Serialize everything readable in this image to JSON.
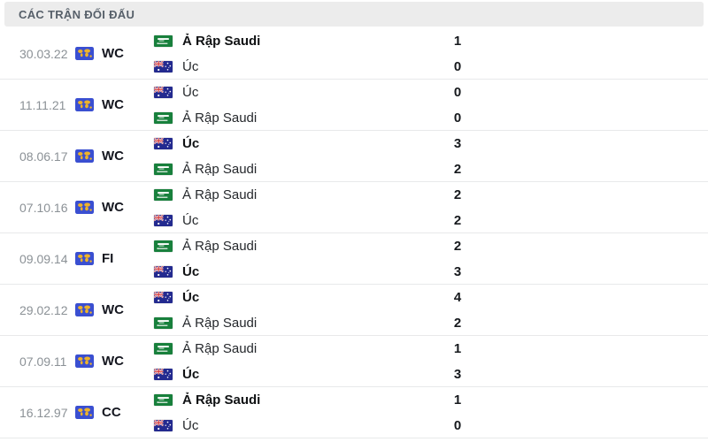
{
  "header": {
    "title": "CÁC TRẬN ĐỐI ĐẤU"
  },
  "icons": {
    "competition": "world-map-icon",
    "competition_colors": {
      "background": "#3a4fd1",
      "map": "#eeb32a"
    },
    "flag_colors": {
      "saudi_green": "#18803c",
      "australia_navy": "#232a8f",
      "jack_red": "#d32f2f"
    }
  },
  "matches": [
    {
      "date": "30.03.22",
      "competition": "WC",
      "teams": [
        {
          "name": "Ả Rập Saudi",
          "flag": "saudi-arabia",
          "score": "1",
          "winner": true
        },
        {
          "name": "Úc",
          "flag": "australia",
          "score": "0",
          "winner": false
        }
      ]
    },
    {
      "date": "11.11.21",
      "competition": "WC",
      "teams": [
        {
          "name": "Úc",
          "flag": "australia",
          "score": "0",
          "winner": false
        },
        {
          "name": "Ả Rập Saudi",
          "flag": "saudi-arabia",
          "score": "0",
          "winner": false
        }
      ]
    },
    {
      "date": "08.06.17",
      "competition": "WC",
      "teams": [
        {
          "name": "Úc",
          "flag": "australia",
          "score": "3",
          "winner": true
        },
        {
          "name": "Ả Rập Saudi",
          "flag": "saudi-arabia",
          "score": "2",
          "winner": false
        }
      ]
    },
    {
      "date": "07.10.16",
      "competition": "WC",
      "teams": [
        {
          "name": "Ả Rập Saudi",
          "flag": "saudi-arabia",
          "score": "2",
          "winner": false
        },
        {
          "name": "Úc",
          "flag": "australia",
          "score": "2",
          "winner": false
        }
      ]
    },
    {
      "date": "09.09.14",
      "competition": "FI",
      "teams": [
        {
          "name": "Ả Rập Saudi",
          "flag": "saudi-arabia",
          "score": "2",
          "winner": false
        },
        {
          "name": "Úc",
          "flag": "australia",
          "score": "3",
          "winner": true
        }
      ]
    },
    {
      "date": "29.02.12",
      "competition": "WC",
      "teams": [
        {
          "name": "Úc",
          "flag": "australia",
          "score": "4",
          "winner": true
        },
        {
          "name": "Ả Rập Saudi",
          "flag": "saudi-arabia",
          "score": "2",
          "winner": false
        }
      ]
    },
    {
      "date": "07.09.11",
      "competition": "WC",
      "teams": [
        {
          "name": "Ả Rập Saudi",
          "flag": "saudi-arabia",
          "score": "1",
          "winner": false
        },
        {
          "name": "Úc",
          "flag": "australia",
          "score": "3",
          "winner": true
        }
      ]
    },
    {
      "date": "16.12.97",
      "competition": "CC",
      "teams": [
        {
          "name": "Ả Rập Saudi",
          "flag": "saudi-arabia",
          "score": "1",
          "winner": true
        },
        {
          "name": "Úc",
          "flag": "australia",
          "score": "0",
          "winner": false
        }
      ]
    }
  ]
}
